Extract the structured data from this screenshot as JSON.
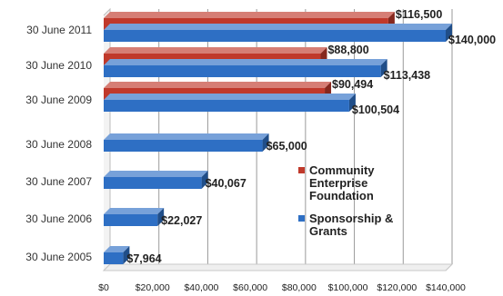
{
  "chart_data": {
    "type": "bar",
    "orientation": "horizontal",
    "style": "3d",
    "categories": [
      "30 June 2005",
      "30 June 2006",
      "30 June 2007",
      "30 June 2008",
      "30 June 2009",
      "30 June 2010",
      "30 June 2011"
    ],
    "series": [
      {
        "name": "Community Enterprise Foundation",
        "color": "#c0392b",
        "values": [
          null,
          null,
          null,
          null,
          90494,
          88800,
          116500
        ],
        "labels": [
          "",
          "",
          "",
          "",
          "$90,494",
          "$88,800",
          "$116,500"
        ]
      },
      {
        "name": "Sponsorship & Grants",
        "color": "#2e6fc4",
        "values": [
          7964,
          22027,
          40067,
          65000,
          100504,
          113438,
          140000
        ],
        "labels": [
          "$7,964",
          "$22,027",
          "$40,067",
          "$65,000",
          "$100,504",
          "$113,438",
          "$140,000"
        ]
      }
    ],
    "xlim": [
      0,
      140000
    ],
    "xticks": [
      "$0",
      "$20,000",
      "$40,000",
      "$60,000",
      "$80,000",
      "$100,000",
      "$120,000",
      "$140,000"
    ],
    "grid": true,
    "legend_position": "right",
    "legend": [
      "Community Enterprise Foundation",
      "Sponsorship & Grants"
    ]
  }
}
